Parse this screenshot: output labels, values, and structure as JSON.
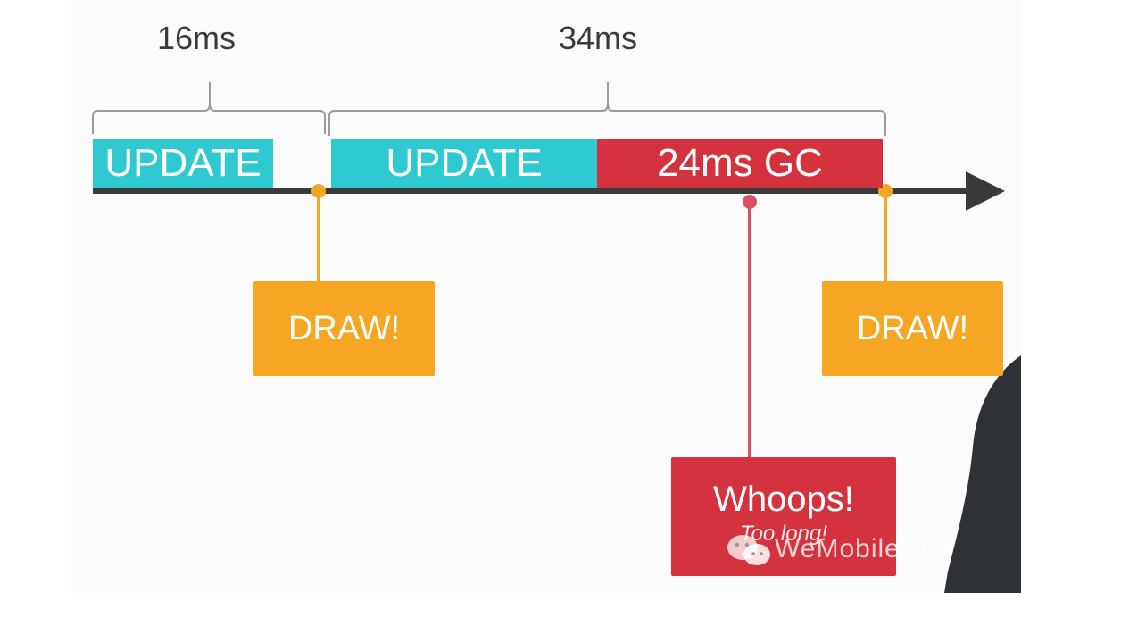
{
  "durations": {
    "first": "16ms",
    "second": "34ms"
  },
  "segments": {
    "update_1": "UPDATE",
    "update_2": "UPDATE",
    "gc": "24ms GC"
  },
  "callouts": {
    "draw_1": "DRAW!",
    "draw_2": "DRAW!",
    "whoops_title": "Whoops!",
    "whoops_subtitle": "Too long!"
  },
  "watermark": "WeMobileDev",
  "colors": {
    "update": "#2ec9d1",
    "gc": "#d3323e",
    "draw": "#f5a623",
    "timeline": "#3a3a3a",
    "marker_draw": "#f5a623",
    "marker_gc": "#d95068"
  }
}
